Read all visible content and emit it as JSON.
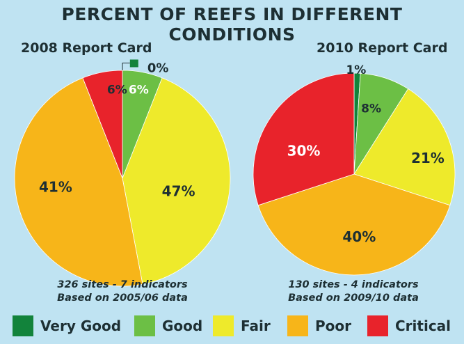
{
  "title": "PERCENT OF REEFS IN DIFFERENT CONDITIONS",
  "colors": {
    "very_good": "#12833b",
    "good": "#6cbf45",
    "fair": "#eeea2b",
    "poor": "#f7b519",
    "critical": "#e8232b",
    "background": "#bfe3f2"
  },
  "legend": [
    {
      "label": "Very Good",
      "color": "#12833b"
    },
    {
      "label": "Good",
      "color": "#6cbf45"
    },
    {
      "label": "Fair",
      "color": "#eeea2b"
    },
    {
      "label": "Poor",
      "color": "#f7b519"
    },
    {
      "label": "Critical",
      "color": "#e8232b"
    }
  ],
  "chart_data": [
    {
      "type": "pie",
      "title": "2008 Report Card",
      "categories": [
        "Very Good",
        "Good",
        "Fair",
        "Poor",
        "Critical"
      ],
      "values": [
        0,
        6,
        41,
        47,
        6
      ],
      "labels": [
        "0%",
        "6%",
        "41%",
        "47%",
        "6%"
      ],
      "start": "top",
      "direction": "clockwise",
      "footnote_line1": "326 sites - 7 indicators",
      "footnote_line2": "Based on 2005/06 data"
    },
    {
      "type": "pie",
      "title": "2010 Report Card",
      "categories": [
        "Very Good",
        "Good",
        "Fair",
        "Poor",
        "Critical"
      ],
      "values": [
        1,
        8,
        21,
        40,
        30
      ],
      "labels": [
        "1%",
        "8%",
        "21%",
        "40%",
        "30%"
      ],
      "start": "top",
      "direction": "clockwise",
      "footnote_line1": "130 sites - 4 indicators",
      "footnote_line2": "Based on 2009/10 data"
    }
  ]
}
